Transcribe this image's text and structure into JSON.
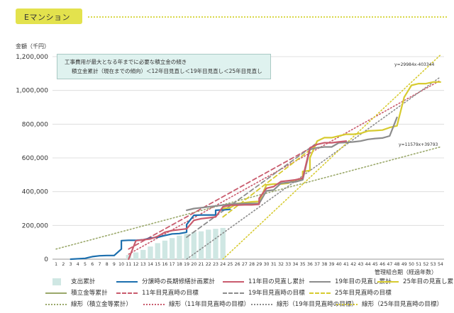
{
  "header": {
    "title": "Eマンション"
  },
  "note": {
    "line1": "工事費用が最大となる年までに必要な積立金の傾き",
    "line2": "積立金累計（現在までの傾向）＜12年目見直し＜19年目見直し＜25年目見直し"
  },
  "axis": {
    "ylabel": "金額（千円）",
    "xlabel": "管理組合期（経過年数）"
  },
  "equations": {
    "upper": "y=29984x-403344",
    "lower": "y=11579x+39793"
  },
  "colors": {
    "spend": "#cfe7e3",
    "plan": "#1c6fae",
    "rev11": "#c95b6d",
    "rev19": "#8c8c8c",
    "rev25": "#d7cb30",
    "savings": "#9aa86a",
    "target11": "#c95b6d",
    "target19": "#8c8c8c",
    "target25": "#d7cb30",
    "trendSavings": "#9aa86a",
    "trend11": "#c95b6d",
    "trend19": "#8c8c8c",
    "trend25": "#d7cb30"
  },
  "chart_data": {
    "type": "line",
    "x": [
      1,
      2,
      3,
      4,
      5,
      6,
      7,
      8,
      9,
      10,
      11,
      12,
      13,
      14,
      15,
      16,
      17,
      18,
      19,
      20,
      21,
      22,
      23,
      24,
      25,
      26,
      27,
      28,
      29,
      30,
      31,
      32,
      33,
      34,
      35,
      36,
      37,
      38,
      39,
      40,
      41,
      42,
      43,
      44,
      45,
      46,
      47,
      48,
      49,
      50,
      51,
      52,
      53,
      54
    ],
    "xlim": [
      1,
      54
    ],
    "ylim": [
      0,
      1200000
    ],
    "yticks": [
      0,
      200000,
      400000,
      600000,
      800000,
      1000000,
      1200000
    ],
    "ytick_labels": [
      "0",
      "200,000",
      "400,000",
      "600,000",
      "800,000",
      "1,000,000",
      "1,200,000"
    ],
    "xlabel": "管理組合期（経過年数）",
    "ylabel": "金額（千円）",
    "bars": {
      "name": "支出累計",
      "x": [
        11,
        12,
        13,
        14,
        15,
        16,
        17,
        18,
        19,
        20,
        21,
        22,
        23,
        24
      ],
      "values": [
        25000,
        40000,
        55000,
        75000,
        95000,
        110000,
        125000,
        140000,
        150000,
        160000,
        165000,
        175000,
        180000,
        185000
      ]
    },
    "series": [
      {
        "key": "plan",
        "name": "分譲時の長期修繕計画累計",
        "style": "solid",
        "points": [
          [
            3,
            0
          ],
          [
            5,
            5000
          ],
          [
            6,
            15000
          ],
          [
            7,
            20000
          ],
          [
            8,
            22000
          ],
          [
            9,
            22000
          ],
          [
            10,
            60000
          ],
          [
            10,
            110000
          ],
          [
            11,
            112000
          ],
          [
            12,
            112000
          ],
          [
            13,
            115000
          ],
          [
            14,
            125000
          ],
          [
            15,
            130000
          ],
          [
            16,
            140000
          ],
          [
            17,
            150000
          ],
          [
            18,
            152000
          ],
          [
            19,
            160000
          ],
          [
            19,
            205000
          ],
          [
            20,
            260000
          ],
          [
            21,
            262000
          ],
          [
            22,
            262000
          ],
          [
            23,
            262000
          ],
          [
            23,
            290000
          ],
          [
            24,
            292000
          ],
          [
            25,
            295000
          ]
        ]
      },
      {
        "key": "rev11",
        "name": "11年目の見直し累計",
        "style": "solid",
        "points": [
          [
            11,
            0
          ],
          [
            12,
            110000
          ],
          [
            13,
            115000
          ],
          [
            14,
            120000
          ],
          [
            15,
            135000
          ],
          [
            16,
            160000
          ],
          [
            17,
            170000
          ],
          [
            18,
            175000
          ],
          [
            19,
            180000
          ],
          [
            20,
            230000
          ],
          [
            21,
            240000
          ],
          [
            22,
            245000
          ],
          [
            23,
            250000
          ],
          [
            24,
            310000
          ],
          [
            25,
            320000
          ],
          [
            26,
            320000
          ],
          [
            27,
            322000
          ],
          [
            28,
            322000
          ],
          [
            29,
            325000
          ],
          [
            29,
            360000
          ],
          [
            30,
            420000
          ],
          [
            31,
            430000
          ],
          [
            32,
            460000
          ],
          [
            33,
            465000
          ],
          [
            34,
            470000
          ],
          [
            35,
            480000
          ],
          [
            36,
            660000
          ],
          [
            37,
            680000
          ],
          [
            38,
            690000
          ],
          [
            39,
            690000
          ],
          [
            40,
            695000
          ],
          [
            41,
            700000
          ]
        ]
      },
      {
        "key": "rev19",
        "name": "19年目の見直し累計",
        "style": "solid",
        "points": [
          [
            19,
            290000
          ],
          [
            20,
            300000
          ],
          [
            21,
            305000
          ],
          [
            22,
            310000
          ],
          [
            23,
            315000
          ],
          [
            24,
            320000
          ],
          [
            25,
            325000
          ],
          [
            26,
            328000
          ],
          [
            27,
            330000
          ],
          [
            28,
            330000
          ],
          [
            29,
            330000
          ],
          [
            30,
            405000
          ],
          [
            31,
            410000
          ],
          [
            32,
            450000
          ],
          [
            33,
            455000
          ],
          [
            34,
            458000
          ],
          [
            35,
            470000
          ],
          [
            36,
            650000
          ],
          [
            37,
            660000
          ],
          [
            38,
            665000
          ],
          [
            39,
            665000
          ],
          [
            40,
            690000
          ],
          [
            41,
            692000
          ],
          [
            42,
            695000
          ],
          [
            43,
            700000
          ],
          [
            44,
            710000
          ],
          [
            45,
            715000
          ],
          [
            46,
            718000
          ],
          [
            47,
            730000
          ],
          [
            48,
            840000
          ]
        ]
      },
      {
        "key": "rev25",
        "name": "25年目の見直し累計",
        "style": "solid",
        "points": [
          [
            24,
            300000
          ],
          [
            25,
            305000
          ],
          [
            26,
            330000
          ],
          [
            27,
            335000
          ],
          [
            28,
            340000
          ],
          [
            29,
            342000
          ],
          [
            30,
            440000
          ],
          [
            31,
            445000
          ],
          [
            32,
            445000
          ],
          [
            33,
            450000
          ],
          [
            34,
            470000
          ],
          [
            35,
            475000
          ],
          [
            35,
            520000
          ],
          [
            36,
            525000
          ],
          [
            36,
            600000
          ],
          [
            37,
            700000
          ],
          [
            38,
            720000
          ],
          [
            39,
            720000
          ],
          [
            40,
            730000
          ],
          [
            41,
            740000
          ],
          [
            42,
            740000
          ],
          [
            43,
            745000
          ],
          [
            44,
            760000
          ],
          [
            45,
            762000
          ],
          [
            46,
            765000
          ],
          [
            47,
            780000
          ],
          [
            48,
            790000
          ],
          [
            49,
            960000
          ],
          [
            50,
            1030000
          ],
          [
            51,
            1040000
          ],
          [
            52,
            1040000
          ],
          [
            53,
            1050000
          ],
          [
            54,
            1050000
          ]
        ]
      },
      {
        "key": "savings",
        "name": "積立金等累計",
        "style": "solid",
        "points": [
          [
            24,
            320000
          ],
          [
            25,
            325000
          ],
          [
            26,
            330000
          ]
        ]
      },
      {
        "key": "target11",
        "name": "11年目見直時の目標",
        "style": "dash",
        "points": [
          [
            11,
            60000
          ],
          [
            37,
            680000
          ]
        ]
      },
      {
        "key": "target19",
        "name": "19年目見直時の目標",
        "style": "dash",
        "points": [
          [
            19,
            130000
          ],
          [
            37,
            690000
          ]
        ]
      },
      {
        "key": "target25",
        "name": "25年目見直時の目標",
        "style": "dash",
        "points": [
          [
            24,
            250000
          ],
          [
            37,
            680000
          ]
        ]
      },
      {
        "key": "trendSavings",
        "name": "線形（積立金等累計）",
        "style": "dot",
        "points": [
          [
            1,
            60000
          ],
          [
            54,
            665000
          ]
        ]
      },
      {
        "key": "trend11",
        "name": "線形（11年目見直時の目標）",
        "style": "dot",
        "points": [
          [
            11,
            30000
          ],
          [
            54,
            1060000
          ]
        ]
      },
      {
        "key": "trend19",
        "name": "線形（19年目見直時の目標）",
        "style": "dot",
        "points": [
          [
            19,
            0
          ],
          [
            54,
            1080000
          ]
        ]
      },
      {
        "key": "trend25",
        "name": "線形（25年目見直時の目標）",
        "style": "dot",
        "points": [
          [
            24,
            0
          ],
          [
            54,
            1210000
          ]
        ]
      }
    ]
  }
}
